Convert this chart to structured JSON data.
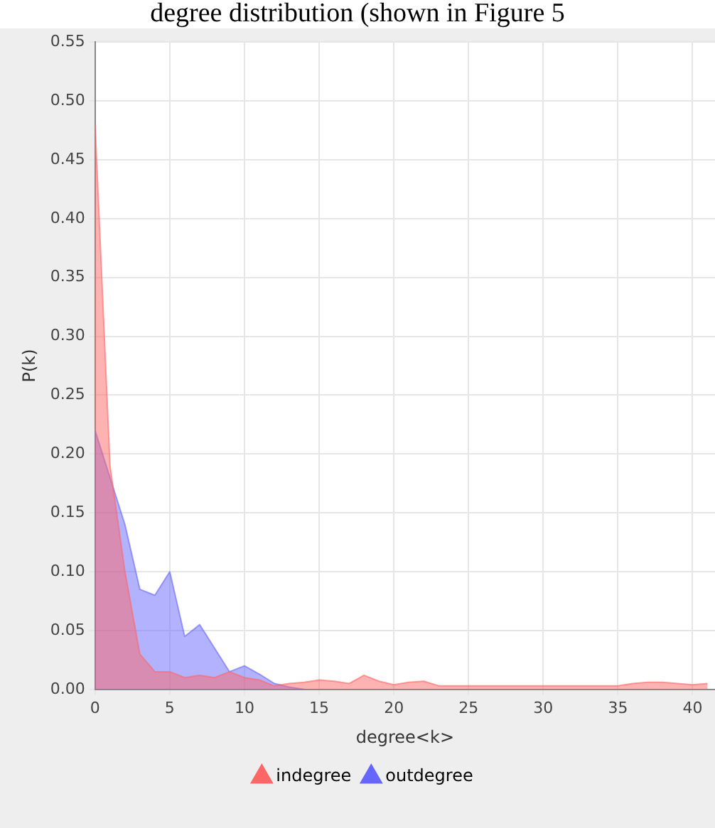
{
  "chart_data": {
    "type": "area",
    "annotations": [
      "degree distribution (shown in Figure 5"
    ],
    "xlabel": "degree<k>",
    "ylabel": "P(k)",
    "xlim": [
      0,
      41.5
    ],
    "xticks": [
      0,
      5,
      10,
      15,
      20,
      25,
      30,
      35,
      40
    ],
    "ylim": [
      0,
      0.55
    ],
    "yticks": [
      {
        "value": 0,
        "label": "0.00"
      },
      0.05,
      {
        "value": 0.1,
        "label": "0.10"
      },
      0.15,
      {
        "value": 0.2,
        "label": "0.20"
      },
      0.25,
      {
        "value": 0.3,
        "label": "0.30"
      },
      0.35,
      {
        "value": 0.4,
        "label": "0.40"
      },
      0.45,
      {
        "value": 0.5,
        "label": "0.50"
      },
      0.55
    ],
    "grid": true,
    "legend": "bottom",
    "series": [
      {
        "name": "indegree",
        "color": "#ff6666",
        "x": [
          0,
          1,
          2,
          3,
          4,
          5,
          6,
          7,
          8,
          9,
          10,
          11,
          12,
          13,
          14,
          15,
          16,
          17,
          18,
          19,
          20,
          21,
          22,
          23,
          24,
          25,
          26,
          27,
          28,
          29,
          30,
          31,
          32,
          33,
          34,
          35,
          36,
          37,
          38,
          39,
          40,
          41
        ],
        "values": [
          0.48,
          0.19,
          0.1,
          0.03,
          0.015,
          0.015,
          0.01,
          0.012,
          0.01,
          0.015,
          0.01,
          0.008,
          0.003,
          0.005,
          0.006,
          0.008,
          0.007,
          0.005,
          0.012,
          0.007,
          0.004,
          0.006,
          0.007,
          0.003,
          0.003,
          0.003,
          0.003,
          0.003,
          0.003,
          0.003,
          0.003,
          0.003,
          0.003,
          0.003,
          0.003,
          0.003,
          0.005,
          0.006,
          0.006,
          0.005,
          0.004,
          0.005
        ]
      },
      {
        "name": "outdegree",
        "color": "#6666ff",
        "x": [
          0,
          1,
          2,
          3,
          4,
          5,
          6,
          7,
          8,
          9,
          10,
          11,
          12,
          13,
          14
        ],
        "values": [
          0.22,
          0.18,
          0.14,
          0.085,
          0.08,
          0.1,
          0.045,
          0.055,
          0.035,
          0.015,
          0.02,
          0.013,
          0.005,
          0.002,
          0
        ]
      }
    ]
  }
}
